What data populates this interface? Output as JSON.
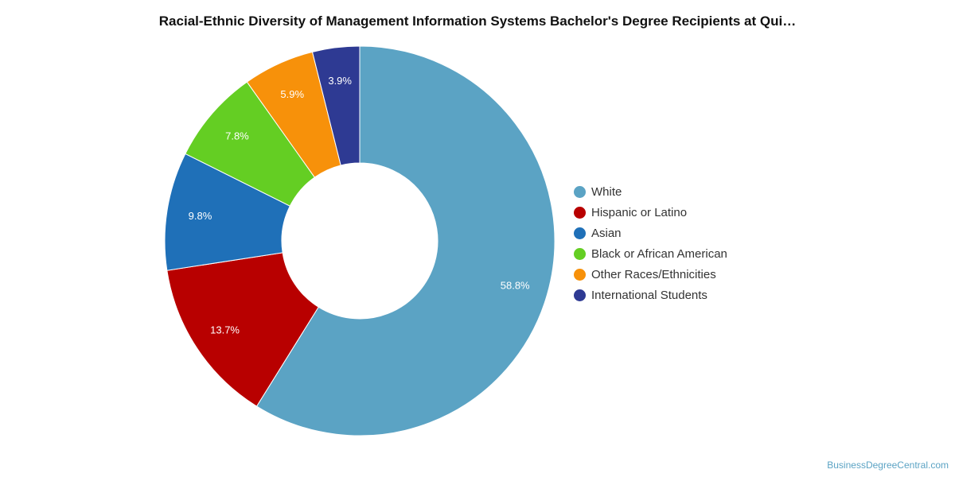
{
  "title": "Racial-Ethnic Diversity of Management Information Systems Bachelor's Degree Recipients at Qui…",
  "source_credit": "BusinessDegreeCentral.com",
  "chart_data": {
    "type": "pie",
    "variant": "donut",
    "title": "Racial-Ethnic Diversity of Management Information Systems Bachelor's Degree Recipients at Qui…",
    "legend_position": "right",
    "series": [
      {
        "name": "White",
        "value": 58.8,
        "label": "58.8%",
        "color": "#5ba3c4"
      },
      {
        "name": "Hispanic or Latino",
        "value": 13.7,
        "label": "13.7%",
        "color": "#b80000"
      },
      {
        "name": "Asian",
        "value": 9.8,
        "label": "9.8%",
        "color": "#1f70b8"
      },
      {
        "name": "Black or African American",
        "value": 7.8,
        "label": "7.8%",
        "color": "#64ce23"
      },
      {
        "name": "Other Races/Ethnicities",
        "value": 5.9,
        "label": "5.9%",
        "color": "#f7910a"
      },
      {
        "name": "International Students",
        "value": 3.9,
        "label": "3.9%",
        "color": "#2e3a93"
      }
    ]
  }
}
